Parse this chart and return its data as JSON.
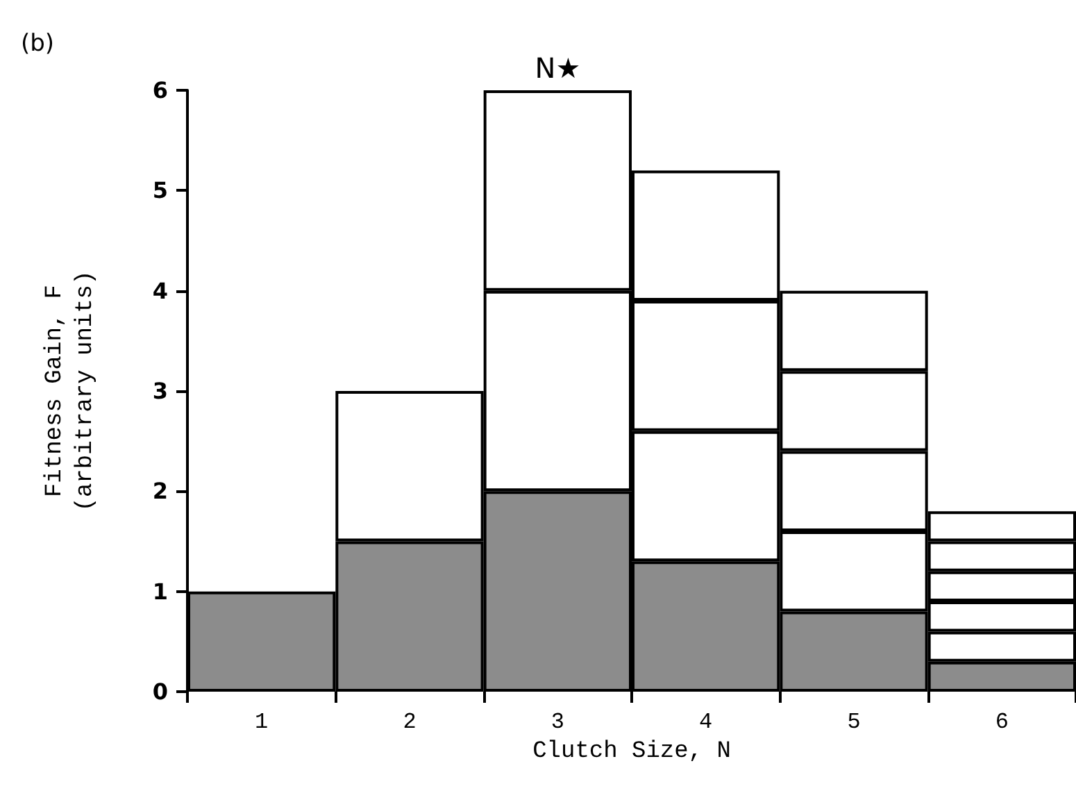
{
  "chart_data": {
    "type": "bar",
    "title": "(b)",
    "xlabel": "Clutch Size, N",
    "ylabel": "Fitness Gain, F\n(arbitrary units)",
    "categories": [
      "1",
      "2",
      "3",
      "4",
      "5",
      "6"
    ],
    "stacked": true,
    "series": [
      {
        "color": "#8c8c8c",
        "values": [
          1,
          1.5,
          2,
          1.3,
          0.8,
          0.3
        ]
      },
      {
        "color": "#ffffff",
        "values": [
          null,
          1.5,
          2,
          1.3,
          0.8,
          0.3
        ]
      },
      {
        "color": "#ffffff",
        "values": [
          null,
          null,
          2,
          1.3,
          0.8,
          0.3
        ]
      },
      {
        "color": "#ffffff",
        "values": [
          null,
          null,
          null,
          1.3,
          0.8,
          0.3
        ]
      },
      {
        "color": "#ffffff",
        "values": [
          null,
          null,
          null,
          null,
          0.8,
          0.3
        ]
      },
      {
        "color": "#ffffff",
        "values": [
          null,
          null,
          null,
          null,
          null,
          0.3
        ]
      }
    ],
    "ylim": [
      0,
      6
    ],
    "yticks": [
      0,
      1,
      2,
      3,
      4,
      5,
      6
    ],
    "grid": false,
    "annotations": [
      {
        "text": "N★",
        "x": "3",
        "y": 6
      }
    ]
  }
}
